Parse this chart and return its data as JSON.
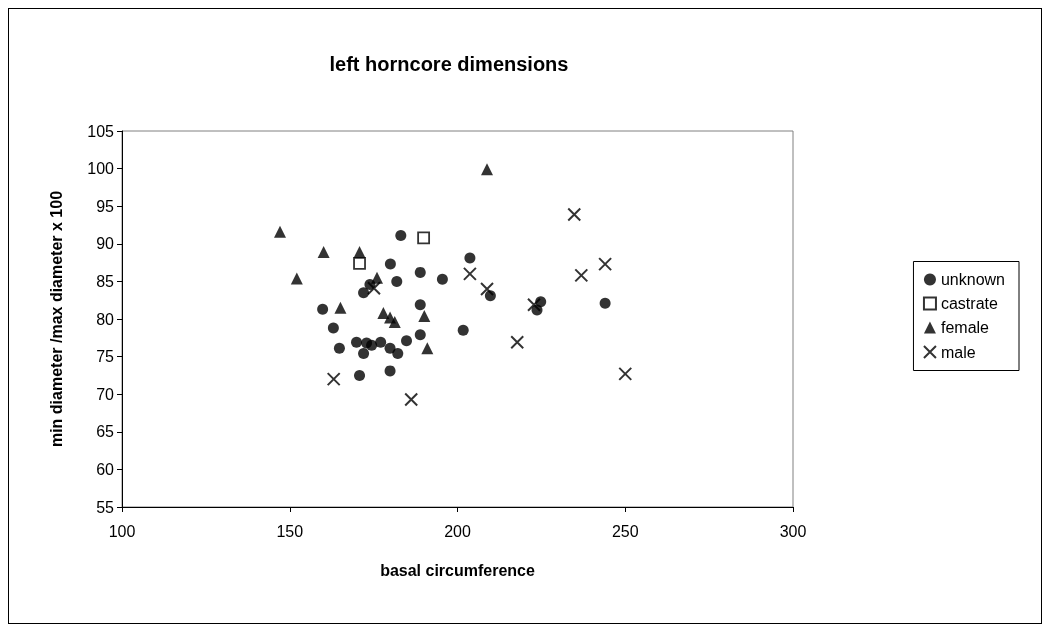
{
  "chart_data": {
    "type": "scatter",
    "title": "left horncore dimensions",
    "xlabel": "basal circumference",
    "ylabel": "min diameter /max diameter x 100",
    "xlim": [
      100,
      300
    ],
    "xticks": [
      100,
      150,
      200,
      250,
      300
    ],
    "ylim": [
      55,
      105
    ],
    "yticks": [
      55,
      60,
      65,
      70,
      75,
      80,
      85,
      90,
      95,
      100,
      105
    ],
    "grid": false,
    "legend": "right",
    "series": [
      {
        "name": "unknown",
        "color": "#000000",
        "marker": "circle",
        "x": [
          183.1,
          180,
          188.9,
          181.9,
          173.9,
          172,
          159.8,
          188.9,
          163,
          164.8,
          169.9,
          172,
          172.9,
          174.4,
          177.1,
          179.9,
          182.2,
          184.8,
          188.9,
          170.8,
          179.9,
          203.7,
          195.5,
          201.7,
          209.8,
          224.8,
          223.7,
          244
        ],
        "values": [
          91.1,
          87.3,
          86.2,
          85,
          84.6,
          83.5,
          81.3,
          81.9,
          78.8,
          76.1,
          76.9,
          75.4,
          76.8,
          76.5,
          76.9,
          76.1,
          75.4,
          77.1,
          77.9,
          72.5,
          73.1,
          88.1,
          85.3,
          78.5,
          83.1,
          82.3,
          81.2,
          82.1
        ]
      },
      {
        "name": "castrate",
        "color": "#000000",
        "marker": "square",
        "x": [
          170.8,
          189.9
        ],
        "values": [
          87.4,
          90.8
        ]
      },
      {
        "name": "female",
        "color": "#000000",
        "marker": "triangle",
        "x": [
          147.1,
          152.1,
          160.1,
          170.8,
          165.1,
          176,
          177.9,
          179.9,
          181.3,
          190.1,
          191,
          208.8
        ],
        "values": [
          91.6,
          85.4,
          88.9,
          88.9,
          81.5,
          85.5,
          80.8,
          80.2,
          79.6,
          80.4,
          76.1,
          99.9
        ]
      },
      {
        "name": "male",
        "color": "#000000",
        "marker": "cross",
        "x": [
          163.1,
          186.2,
          175.1,
          203.7,
          208.8,
          222.8,
          217.8,
          234.8,
          236.9,
          244,
          250
        ],
        "values": [
          72,
          69.3,
          84.1,
          86,
          84,
          81.9,
          76.9,
          93.9,
          85.8,
          87.3,
          72.7
        ]
      }
    ]
  }
}
